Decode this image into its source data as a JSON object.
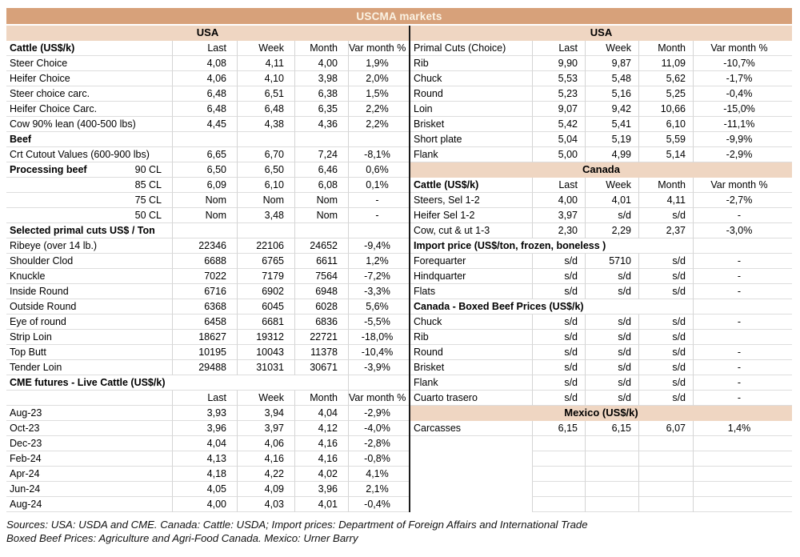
{
  "title": "USCMA markets",
  "columns": [
    "Last",
    "Week",
    "Month",
    "Var month %"
  ],
  "colors": {
    "title_band": "#D7A17A",
    "section_band": "#EFD6C2"
  },
  "left": {
    "rows": [
      {
        "type": "band",
        "label": "USA"
      },
      {
        "type": "header",
        "label": "Cattle (US$/k)",
        "bold": true
      },
      {
        "type": "data",
        "label": "Steer Choice",
        "values": [
          "4,08",
          "4,11",
          "4,00",
          "1,9%"
        ]
      },
      {
        "type": "data",
        "label": "Heifer Choice",
        "values": [
          "4,06",
          "4,10",
          "3,98",
          "2,0%"
        ]
      },
      {
        "type": "data",
        "label": "Steer choice carc.",
        "values": [
          "6,48",
          "6,51",
          "6,38",
          "1,5%"
        ]
      },
      {
        "type": "data",
        "label": "Heifer Choice Carc.",
        "values": [
          "6,48",
          "6,48",
          "6,35",
          "2,2%"
        ]
      },
      {
        "type": "data",
        "label": "Cow 90% lean (400-500 lbs)",
        "values": [
          "4,45",
          "4,38",
          "4,36",
          "2,2%"
        ]
      },
      {
        "type": "section",
        "label": "Beef",
        "wide": false
      },
      {
        "type": "data",
        "label": "Crt Cutout Values (600-900 lbs)",
        "values": [
          "6,65",
          "6,70",
          "7,24",
          "-8,1%"
        ]
      },
      {
        "type": "split",
        "label": "Processing beef",
        "sub": "90 CL",
        "values": [
          "6,50",
          "6,50",
          "6,46",
          "0,6%"
        ]
      },
      {
        "type": "sub",
        "sub": "85 CL",
        "values": [
          "6,09",
          "6,10",
          "6,08",
          "0,1%"
        ]
      },
      {
        "type": "sub",
        "sub": "75 CL",
        "values": [
          "Nom",
          "Nom",
          "Nom",
          "-"
        ]
      },
      {
        "type": "sub",
        "sub": "50 CL",
        "values": [
          "Nom",
          "3,48",
          "Nom",
          "-"
        ]
      },
      {
        "type": "section",
        "label": "Selected primal cuts US$ / Ton",
        "wide": false
      },
      {
        "type": "data",
        "label": "Ribeye (over 14 lb.)",
        "values": [
          "22346",
          "22106",
          "24652",
          "-9,4%"
        ]
      },
      {
        "type": "data",
        "label": "Shoulder Clod",
        "values": [
          "6688",
          "6765",
          "6611",
          "1,2%"
        ]
      },
      {
        "type": "data",
        "label": "Knuckle",
        "values": [
          "7022",
          "7179",
          "7564",
          "-7,2%"
        ]
      },
      {
        "type": "data",
        "label": "Inside Round",
        "values": [
          "6716",
          "6902",
          "6948",
          "-3,3%"
        ]
      },
      {
        "type": "data",
        "label": "Outside Round",
        "values": [
          "6368",
          "6045",
          "6028",
          "5,6%"
        ]
      },
      {
        "type": "data",
        "label": "Eye of round",
        "values": [
          "6458",
          "6681",
          "6836",
          "-5,5%"
        ]
      },
      {
        "type": "data",
        "label": "Strip Loin",
        "values": [
          "18627",
          "19312",
          "22721",
          "-18,0%"
        ]
      },
      {
        "type": "data",
        "label": "Top Butt",
        "values": [
          "10195",
          "10043",
          "11378",
          "-10,4%"
        ]
      },
      {
        "type": "data",
        "label": "Tender Loin",
        "values": [
          "29488",
          "31031",
          "30671",
          "-3,9%"
        ]
      },
      {
        "type": "section",
        "label": "CME futures - Live Cattle (US$/k)",
        "wide": true
      },
      {
        "type": "cols"
      },
      {
        "type": "data",
        "label": "Aug-23",
        "values": [
          "3,93",
          "3,94",
          "4,04",
          "-2,9%"
        ]
      },
      {
        "type": "data",
        "label": "Oct-23",
        "values": [
          "3,96",
          "3,97",
          "4,12",
          "-4,0%"
        ]
      },
      {
        "type": "data",
        "label": "Dec-23",
        "values": [
          "4,04",
          "4,06",
          "4,16",
          "-2,8%"
        ]
      },
      {
        "type": "data",
        "label": "Feb-24",
        "values": [
          "4,13",
          "4,16",
          "4,16",
          "-0,8%"
        ]
      },
      {
        "type": "data",
        "label": "Apr-24",
        "values": [
          "4,18",
          "4,22",
          "4,02",
          "4,1%"
        ]
      },
      {
        "type": "data",
        "label": "Jun-24",
        "values": [
          "4,05",
          "4,09",
          "3,96",
          "2,1%"
        ]
      },
      {
        "type": "data",
        "label": "Aug-24",
        "values": [
          "4,00",
          "4,03",
          "4,01",
          "-0,4%"
        ]
      }
    ]
  },
  "right": {
    "rows": [
      {
        "type": "band",
        "label": "USA"
      },
      {
        "type": "header",
        "label": "Primal Cuts (Choice)",
        "bold": false
      },
      {
        "type": "data",
        "label": "Rib",
        "values": [
          "9,90",
          "9,87",
          "11,09",
          "-10,7%"
        ]
      },
      {
        "type": "data",
        "label": "Chuck",
        "values": [
          "5,53",
          "5,48",
          "5,62",
          "-1,7%"
        ]
      },
      {
        "type": "data",
        "label": "Round",
        "values": [
          "5,23",
          "5,16",
          "5,25",
          "-0,4%"
        ]
      },
      {
        "type": "data",
        "label": "Loin",
        "values": [
          "9,07",
          "9,42",
          "10,66",
          "-15,0%"
        ]
      },
      {
        "type": "data",
        "label": "Brisket",
        "values": [
          "5,42",
          "5,41",
          "6,10",
          "-11,1%"
        ]
      },
      {
        "type": "data",
        "label": "Short plate",
        "values": [
          "5,04",
          "5,19",
          "5,59",
          "-9,9%"
        ]
      },
      {
        "type": "data",
        "label": "Flank",
        "values": [
          "5,00",
          "4,99",
          "5,14",
          "-2,9%"
        ]
      },
      {
        "type": "band",
        "label": "Canada"
      },
      {
        "type": "header",
        "label": "Cattle (US$/k)",
        "bold": true
      },
      {
        "type": "data",
        "label": "Steers, Sel 1-2",
        "values": [
          "4,00",
          "4,01",
          "4,11",
          "-2,7%"
        ]
      },
      {
        "type": "data",
        "label": "Heifer Sel 1-2",
        "values": [
          "3,97",
          "s/d",
          "s/d",
          "-"
        ]
      },
      {
        "type": "data",
        "label": "Cow, cut & ut 1-3",
        "values": [
          "2,30",
          "2,29",
          "2,37",
          "-3,0%"
        ]
      },
      {
        "type": "section",
        "label": "Import price (US$/ton, frozen, boneless )",
        "wide": true
      },
      {
        "type": "data",
        "label": "Forequarter",
        "values": [
          "s/d",
          "5710",
          "s/d",
          "-"
        ]
      },
      {
        "type": "data",
        "label": "Hindquarter",
        "values": [
          "s/d",
          "s/d",
          "s/d",
          "-"
        ]
      },
      {
        "type": "data",
        "label": "Flats",
        "values": [
          "s/d",
          "s/d",
          "s/d",
          "-"
        ]
      },
      {
        "type": "section",
        "label": "Canada - Boxed Beef Prices (US$/k)",
        "wide": true
      },
      {
        "type": "data",
        "label": "Chuck",
        "values": [
          "s/d",
          "s/d",
          "s/d",
          "-"
        ]
      },
      {
        "type": "data",
        "label": "Rib",
        "values": [
          "s/d",
          "s/d",
          "s/d",
          ""
        ]
      },
      {
        "type": "data",
        "label": "Round",
        "values": [
          "s/d",
          "s/d",
          "s/d",
          "-"
        ]
      },
      {
        "type": "data",
        "label": "Brisket",
        "values": [
          "s/d",
          "s/d",
          "s/d",
          "-"
        ]
      },
      {
        "type": "data",
        "label": "Flank",
        "values": [
          "s/d",
          "s/d",
          "s/d",
          "-"
        ]
      },
      {
        "type": "data",
        "label": "Cuarto trasero",
        "values": [
          "s/d",
          "s/d",
          "s/d",
          "-"
        ]
      },
      {
        "type": "band",
        "label": "Mexico (US$/k)"
      },
      {
        "type": "data",
        "label": "Carcasses",
        "values": [
          "6,15",
          "6,15",
          "6,07",
          "1,4%"
        ]
      },
      {
        "type": "empty"
      },
      {
        "type": "empty"
      },
      {
        "type": "empty"
      },
      {
        "type": "empty"
      },
      {
        "type": "empty"
      }
    ]
  },
  "sources": {
    "line1": "Sources: USA: USDA and CME. Canada: Cattle: USDA; Import prices: Department of Foreign Affairs and International Trade",
    "line2": "Boxed Beef Prices: Agriculture and Agri-Food Canada. Mexico: Urner Barry"
  }
}
